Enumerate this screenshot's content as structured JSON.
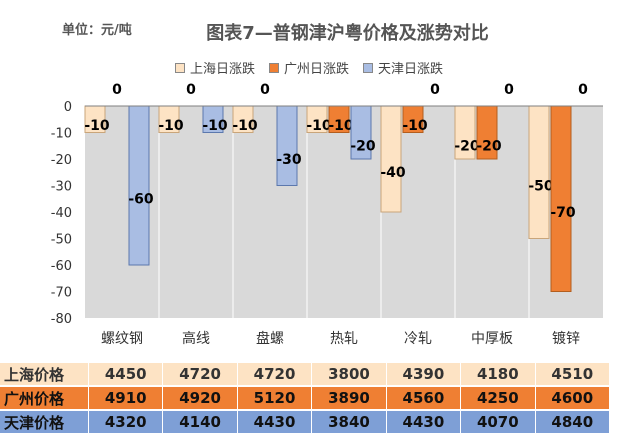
{
  "chart_data": {
    "type": "bar",
    "title": "图表7—普钢津沪粤价格及涨势对比",
    "unit_label": "单位：元/吨",
    "categories": [
      "螺纹钢",
      "高线",
      "盘螺",
      "热轧",
      "冷轧",
      "中厚板",
      "镀锌"
    ],
    "series": [
      {
        "name": "上海日涨跌",
        "values": [
          -10,
          -10,
          -10,
          -10,
          -40,
          -20,
          -50
        ],
        "color": "#fde3c4",
        "border": "#c9a57a"
      },
      {
        "name": "广州日涨跌",
        "values": [
          0,
          0,
          0,
          -10,
          -10,
          -20,
          -70
        ],
        "color": "#ef7f33",
        "border": "#b35e1e"
      },
      {
        "name": "天津日涨跌",
        "values": [
          -60,
          -10,
          -30,
          -20,
          0,
          0,
          0
        ],
        "color": "#a9bde3",
        "border": "#5c78ad"
      }
    ],
    "ylim": [
      -80,
      0
    ],
    "yticks": [
      0,
      -10,
      -20,
      -30,
      -40,
      -50,
      -60,
      -70,
      -80
    ],
    "grid": false,
    "legend_position": "top"
  },
  "table": {
    "rows": [
      {
        "label": "上海价格",
        "values": [
          "4450",
          "4720",
          "4720",
          "3800",
          "4390",
          "4180",
          "4510"
        ]
      },
      {
        "label": "广州价格",
        "values": [
          "4910",
          "4920",
          "5120",
          "3890",
          "4560",
          "4250",
          "4600"
        ]
      },
      {
        "label": "天津价格",
        "values": [
          "4320",
          "4140",
          "4430",
          "3840",
          "4430",
          "4070",
          "4840"
        ]
      }
    ]
  }
}
